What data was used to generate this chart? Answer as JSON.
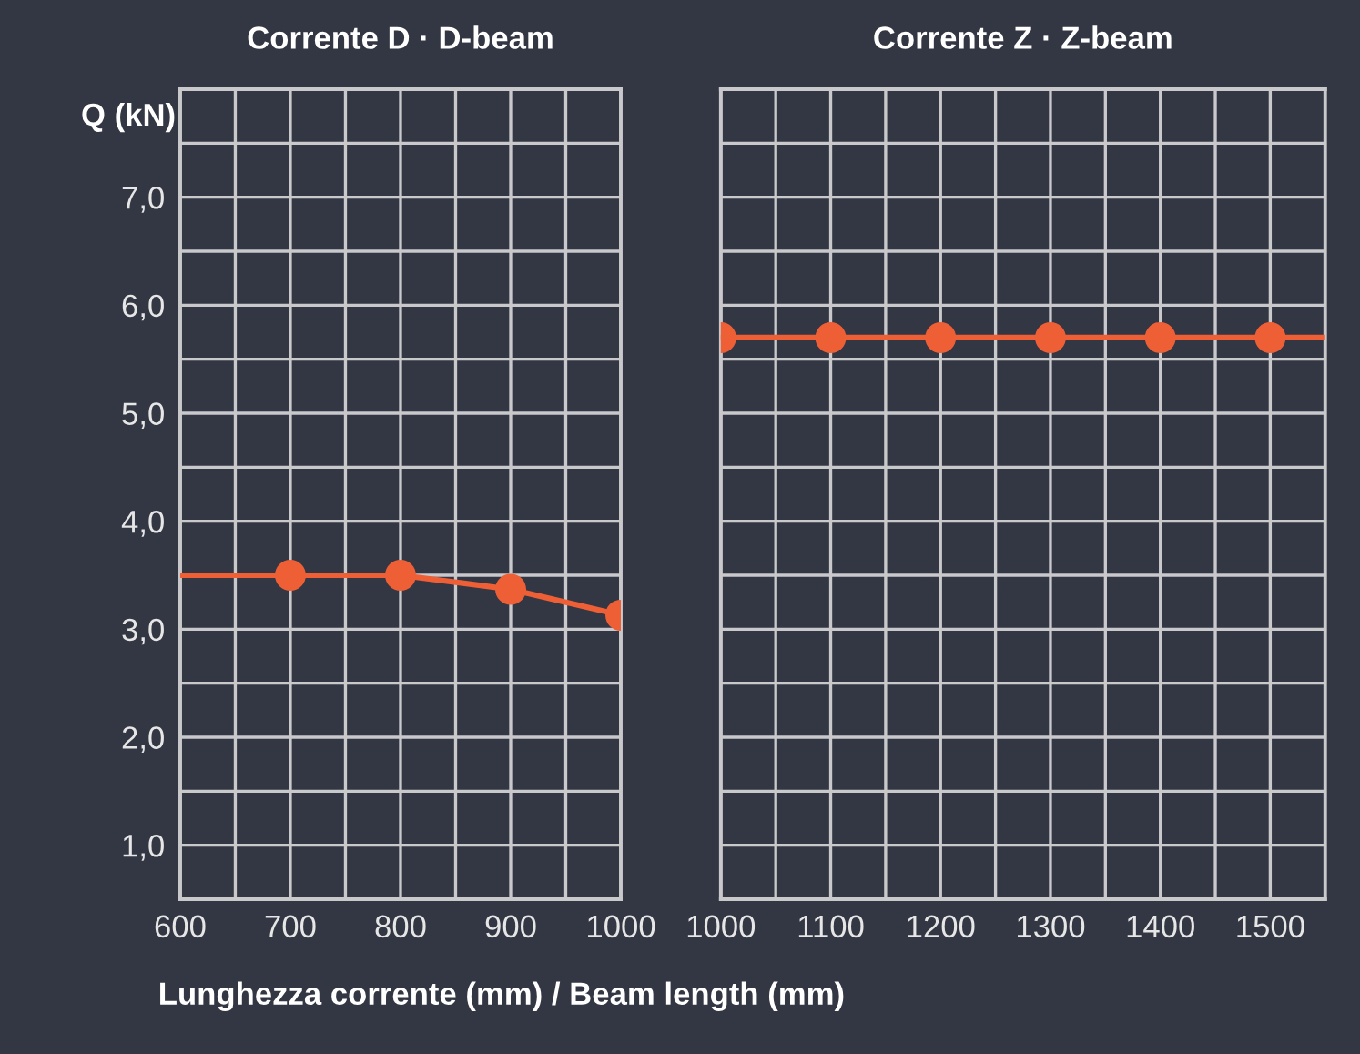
{
  "chart_data": [
    {
      "type": "line",
      "title": "Corrente D · D-beam",
      "ylabel": "Q (kN)",
      "xlabel": "Lunghezza corrente (mm) / Beam length (mm)",
      "xlim": [
        600,
        1000
      ],
      "ylim": [
        0.5,
        8.0
      ],
      "xticks": [
        600,
        {
          "value": 650,
          "label": null
        },
        700,
        {
          "value": 750,
          "label": null
        },
        800,
        {
          "value": 850,
          "label": null
        },
        900,
        {
          "value": 950,
          "label": null
        },
        1000
      ],
      "yticks": [
        {
          "value": 1.0,
          "label": "1,0"
        },
        {
          "value": 1.5,
          "label": null
        },
        {
          "value": 2.0,
          "label": "2,0"
        },
        {
          "value": 2.5,
          "label": null
        },
        {
          "value": 3.0,
          "label": "3,0"
        },
        {
          "value": 3.5,
          "label": null
        },
        {
          "value": 4.0,
          "label": "4,0"
        },
        {
          "value": 4.5,
          "label": null
        },
        {
          "value": 5.0,
          "label": "5,0"
        },
        {
          "value": 5.5,
          "label": null
        },
        {
          "value": 6.0,
          "label": "6,0"
        },
        {
          "value": 6.5,
          "label": null
        },
        {
          "value": 7.0,
          "label": "7,0"
        },
        {
          "value": 7.5,
          "label": null
        }
      ],
      "grid": true,
      "series": [
        {
          "color": "#ef5f35",
          "marker": "none",
          "x": [
            600,
            700,
            800,
            900,
            1000
          ],
          "values": [
            3.5,
            3.5,
            3.5,
            3.37,
            3.13
          ]
        },
        {
          "type": "scatter",
          "color": "#ef5f35",
          "marker": "circle",
          "x": [
            700,
            800,
            900,
            1000
          ],
          "values": [
            3.5,
            3.5,
            3.37,
            3.13
          ]
        }
      ]
    },
    {
      "type": "line",
      "title": "Corrente Z · Z-beam",
      "tick_labels": "x",
      "xlim": [
        1000,
        1550
      ],
      "ylim": [
        0.5,
        8.0
      ],
      "yticks": [
        {
          "value": 1.0,
          "label": null
        },
        {
          "value": 1.5,
          "label": null
        },
        {
          "value": 2.0,
          "label": null
        },
        {
          "value": 2.5,
          "label": null
        },
        {
          "value": 3.0,
          "label": null
        },
        {
          "value": 3.5,
          "label": null
        },
        {
          "value": 4.0,
          "label": null
        },
        {
          "value": 4.5,
          "label": null
        },
        {
          "value": 5.0,
          "label": null
        },
        {
          "value": 5.5,
          "label": null
        },
        {
          "value": 6.0,
          "label": null
        },
        {
          "value": 6.5,
          "label": null
        },
        {
          "value": 7.0,
          "label": null
        },
        {
          "value": 7.5,
          "label": null
        }
      ],
      "xticks": [
        1000,
        {
          "value": 1050,
          "label": null
        },
        1100,
        {
          "value": 1150,
          "label": null
        },
        1200,
        {
          "value": 1250,
          "label": null
        },
        1300,
        {
          "value": 1350,
          "label": null
        },
        1400,
        {
          "value": 1450,
          "label": null
        },
        1500
      ],
      "grid": true,
      "series": [
        {
          "color": "#ef5f35",
          "marker": "none",
          "x": [
            1000,
            1100,
            1200,
            1300,
            1400,
            1500,
            1550
          ],
          "values": [
            5.7,
            5.7,
            5.7,
            5.7,
            5.7,
            5.7,
            5.7
          ]
        },
        {
          "type": "scatter",
          "color": "#ef5f35",
          "marker": "circle",
          "x": [
            1000,
            1100,
            1200,
            1300,
            1400,
            1500
          ],
          "values": [
            5.7,
            5.7,
            5.7,
            5.7,
            5.7,
            5.7
          ]
        }
      ]
    }
  ]
}
